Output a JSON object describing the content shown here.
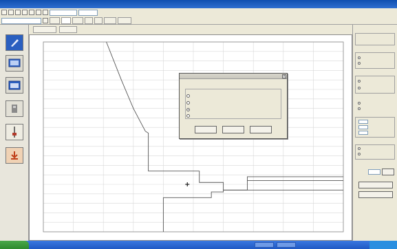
{
  "window": {
    "title": ""
  },
  "toolbar": {
    "combo_value": "",
    "tabs": [
      "",
      "",
      "",
      "",
      "",
      "",
      ""
    ]
  },
  "tools": {
    "items": [
      {
        "icon": "pen-icon",
        "label": ""
      },
      {
        "icon": "monitor-icon",
        "label": ""
      },
      {
        "icon": "window-icon",
        "label": ""
      },
      {
        "icon": "device-icon",
        "label": ""
      },
      {
        "icon": "probe-icon",
        "label": ""
      },
      {
        "icon": "download-icon",
        "label": ""
      }
    ]
  },
  "doc_tabs": [
    "",
    ""
  ],
  "chart": {
    "title": "",
    "xlabel": "",
    "ylabel": ""
  },
  "chart_data": {
    "type": "line",
    "title": "",
    "xlabel": "",
    "ylabel": "",
    "grid": true,
    "xlim": [
      0,
      10
    ],
    "ylim": [
      0,
      20
    ],
    "series": [
      {
        "x": [
          2.1,
          2.6,
          3.0,
          3.3,
          3.4,
          3.5,
          3.5,
          5.2,
          5.2,
          6.0,
          6.0,
          6.8,
          6.8,
          10.0
        ],
        "y": [
          20,
          16,
          13,
          11.2,
          10.6,
          10.4,
          6.4,
          6.4,
          5.2,
          5.2,
          4.4,
          4.4,
          5.4,
          5.4
        ]
      },
      {
        "x": [
          6.8,
          6.8,
          10.0
        ],
        "y": [
          5.4,
          5.8,
          5.8
        ]
      },
      {
        "x": [
          4.0,
          4.0,
          5.6,
          5.6,
          6.0,
          6.0,
          10.0
        ],
        "y": [
          0,
          3.6,
          3.6,
          4.2,
          4.2,
          4.4,
          4.4
        ]
      }
    ],
    "marker": {
      "x": 4.8,
      "y": 5.0
    }
  },
  "dialog": {
    "message": "",
    "options": [
      {
        "label": "",
        "checked": false
      },
      {
        "label": "",
        "checked": false
      },
      {
        "label": "",
        "checked": true
      },
      {
        "label": "",
        "checked": false
      }
    ],
    "buttons": [
      "",
      "",
      ""
    ]
  },
  "right_panel": {
    "section_labels": [
      "",
      "",
      "",
      "",
      "",
      "",
      ""
    ],
    "buttons": [
      "",
      ""
    ]
  },
  "colors": {
    "titlebar": "#1a5cc8",
    "chart_line": "#555555",
    "grid": "#d8d8d8"
  }
}
